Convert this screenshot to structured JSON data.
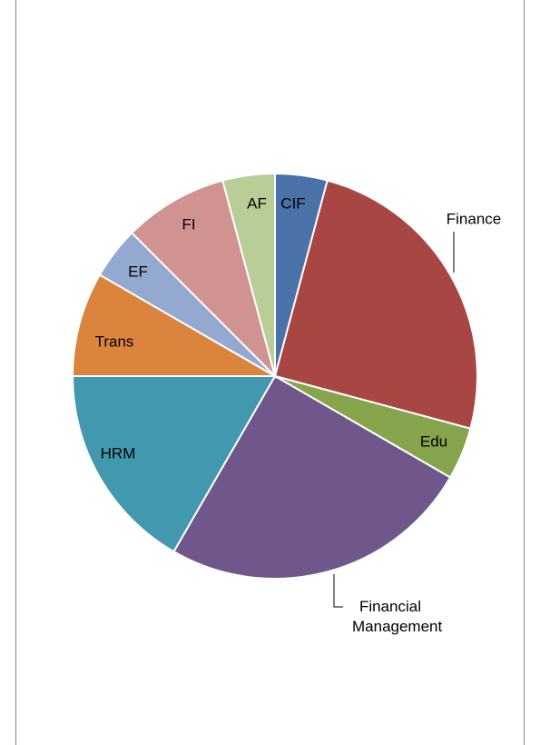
{
  "chart_data": {
    "type": "pie",
    "categories": [
      "CIF",
      "Finance",
      "Edu",
      "Financial Management",
      "HRM",
      "Trans",
      "EF",
      "FI",
      "AF"
    ],
    "values": [
      1,
      6,
      1,
      6,
      4,
      2,
      1,
      2,
      1
    ],
    "colors": [
      "#4a72a8",
      "#a84644",
      "#86a44b",
      "#6f578c",
      "#4198af",
      "#db843d",
      "#93a9cf",
      "#d09392",
      "#b9cd96"
    ]
  }
}
